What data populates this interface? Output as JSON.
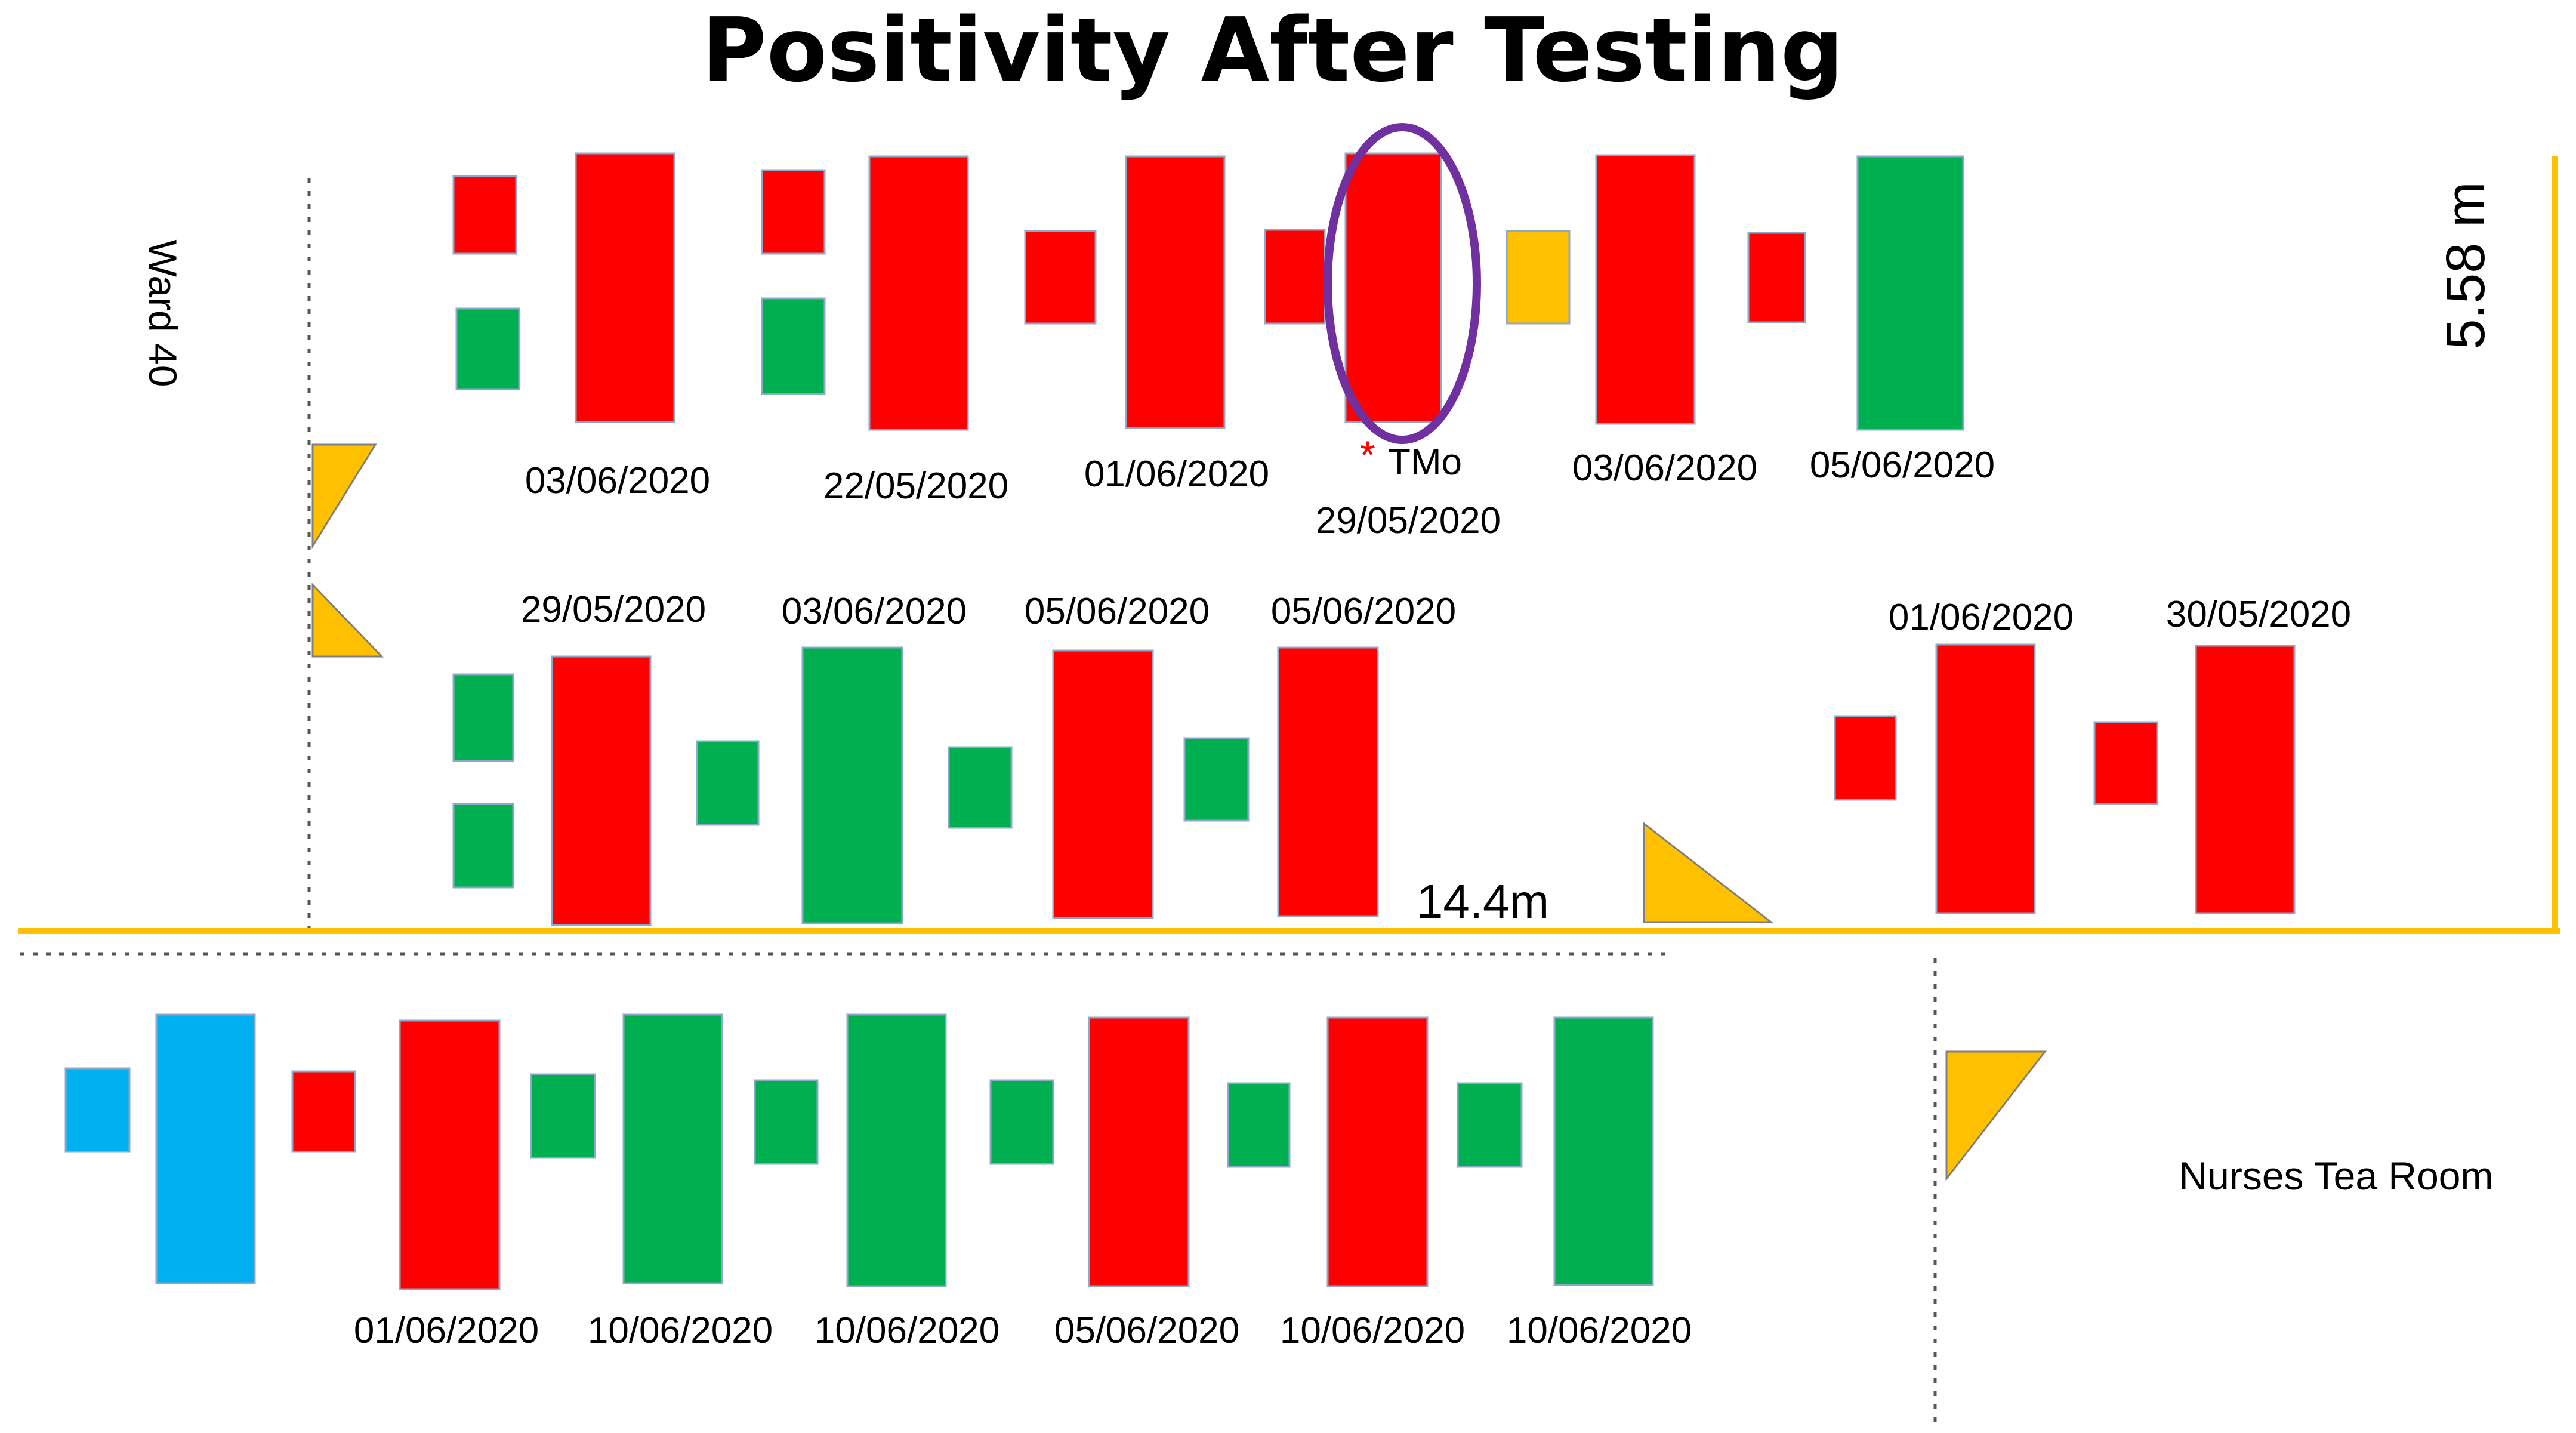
{
  "title": "Positivity After Testing",
  "labels": {
    "ward": "Ward 40",
    "nurses_room": "Nurses Tea Room",
    "width_measure": "14.4m",
    "height_measure": "5.58 m",
    "marker_asterisk": "*",
    "marker_name": "TMo"
  },
  "colors": {
    "positive": "#ff0000",
    "negative": "#00b050",
    "blue": "#00b0f0",
    "orange": "#ffc000",
    "circle": "#7030a0",
    "measure_line": "#ffc000"
  },
  "dates": {
    "row1": [
      "03/06/2020",
      "22/05/2020",
      "01/06/2020",
      "29/05/2020",
      "03/06/2020",
      "05/06/2020"
    ],
    "row2": [
      "29/05/2020",
      "03/06/2020",
      "05/06/2020",
      "05/06/2020",
      "01/06/2020",
      "30/05/2020"
    ],
    "row3": [
      "01/06/2020",
      "10/06/2020",
      "10/06/2020",
      "05/06/2020",
      "10/06/2020",
      "10/06/2020"
    ]
  },
  "items": [
    {
      "kind": "chair",
      "color": "positive"
    },
    {
      "kind": "chair",
      "color": "negative"
    },
    {
      "kind": "bed",
      "color": "positive"
    },
    {
      "kind": "chair",
      "color": "positive"
    },
    {
      "kind": "chair",
      "color": "negative"
    },
    {
      "kind": "bed",
      "color": "positive"
    },
    {
      "kind": "chair",
      "color": "positive"
    },
    {
      "kind": "bed",
      "color": "positive"
    },
    {
      "kind": "chair",
      "color": "positive"
    },
    {
      "kind": "bed",
      "color": "positive"
    },
    {
      "kind": "chair",
      "color": "orange"
    },
    {
      "kind": "bed",
      "color": "positive"
    },
    {
      "kind": "chair",
      "color": "positive"
    },
    {
      "kind": "bed",
      "color": "negative"
    },
    {
      "kind": "chair",
      "color": "negative"
    },
    {
      "kind": "chair",
      "color": "negative"
    },
    {
      "kind": "bed",
      "color": "positive"
    },
    {
      "kind": "chair",
      "color": "negative"
    },
    {
      "kind": "bed",
      "color": "negative"
    },
    {
      "kind": "chair",
      "color": "negative"
    },
    {
      "kind": "bed",
      "color": "positive"
    },
    {
      "kind": "chair",
      "color": "negative"
    },
    {
      "kind": "bed",
      "color": "positive"
    },
    {
      "kind": "chair",
      "color": "positive"
    },
    {
      "kind": "bed",
      "color": "positive"
    },
    {
      "kind": "chair",
      "color": "positive"
    },
    {
      "kind": "bed",
      "color": "positive"
    },
    {
      "kind": "chair",
      "color": "blue"
    },
    {
      "kind": "bed",
      "color": "blue"
    },
    {
      "kind": "chair",
      "color": "positive"
    },
    {
      "kind": "bed",
      "color": "positive"
    },
    {
      "kind": "chair",
      "color": "negative"
    },
    {
      "kind": "bed",
      "color": "negative"
    },
    {
      "kind": "chair",
      "color": "negative"
    },
    {
      "kind": "bed",
      "color": "negative"
    },
    {
      "kind": "chair",
      "color": "negative"
    },
    {
      "kind": "bed",
      "color": "positive"
    },
    {
      "kind": "chair",
      "color": "negative"
    },
    {
      "kind": "bed",
      "color": "positive"
    },
    {
      "kind": "chair",
      "color": "negative"
    },
    {
      "kind": "bed",
      "color": "negative"
    }
  ]
}
